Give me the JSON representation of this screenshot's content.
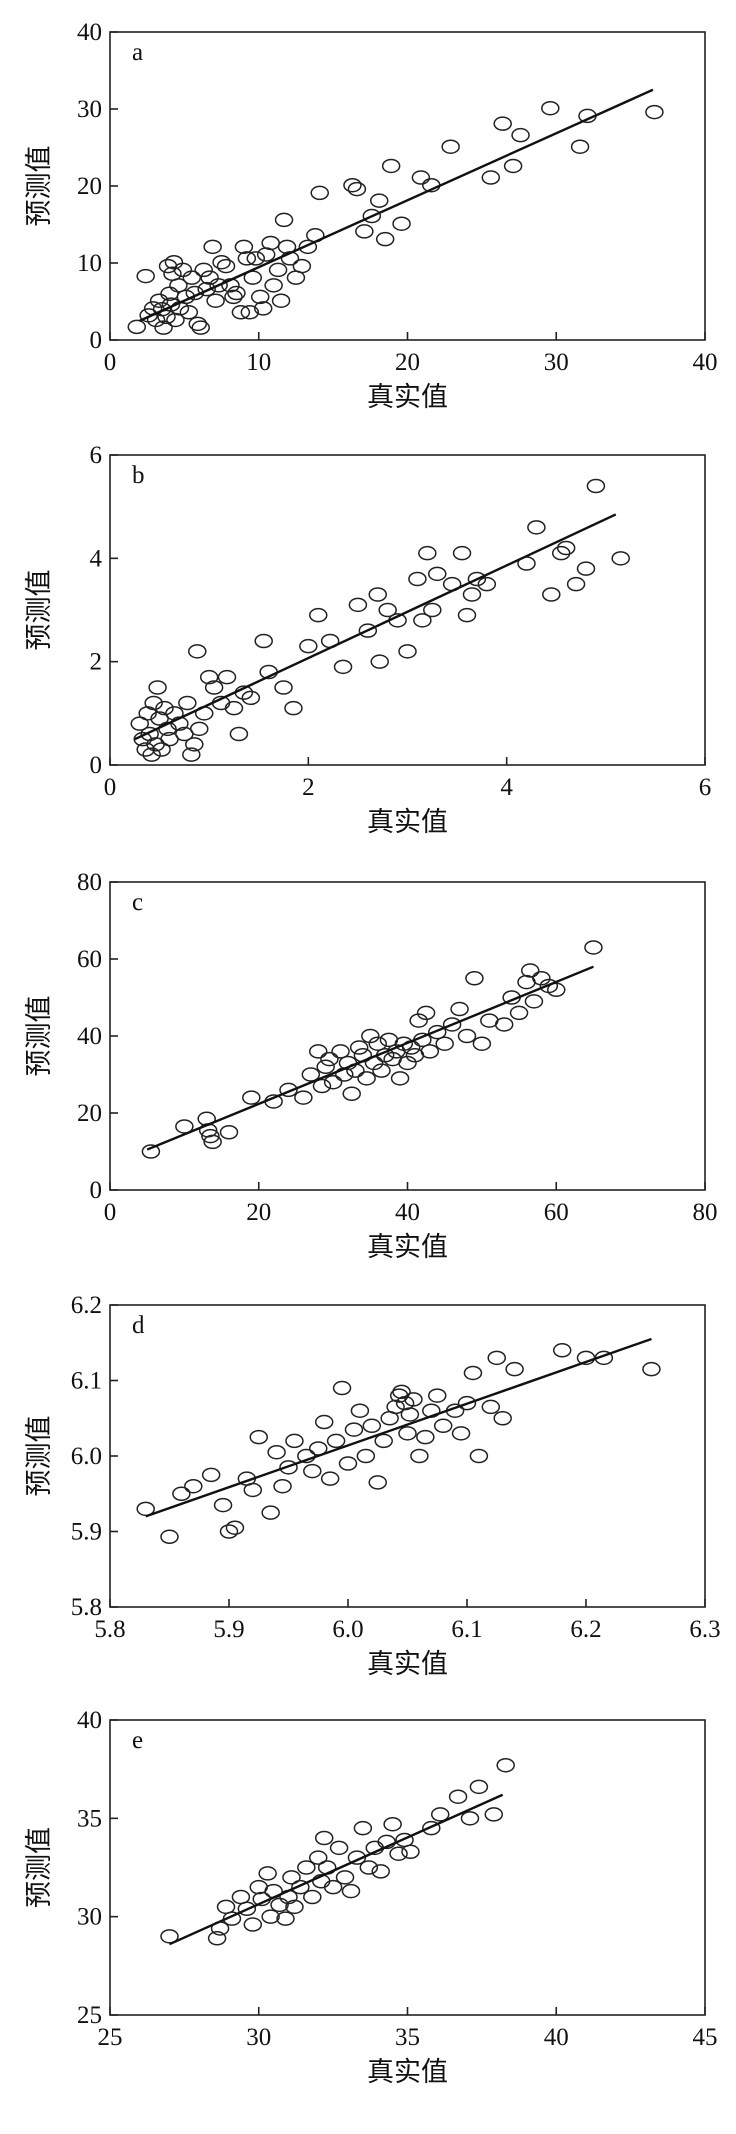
{
  "chart_data": [
    {
      "type": "scatter",
      "panel": "a",
      "xlabel": "真实值",
      "ylabel": "预测值",
      "xlim": [
        0,
        40
      ],
      "ylim": [
        0,
        40
      ],
      "xticks": [
        0,
        10,
        20,
        30,
        40
      ],
      "yticks": [
        0,
        10,
        20,
        30,
        40
      ],
      "tick_labels_x": [
        "0",
        "10",
        "20",
        "30",
        "40"
      ],
      "tick_labels_y": [
        "0",
        "10",
        "20",
        "30",
        "40"
      ],
      "fit_line": [
        [
          2,
          2.5
        ],
        [
          36.5,
          32.5
        ]
      ],
      "points": [
        [
          1.8,
          1.7
        ],
        [
          2.4,
          8.3
        ],
        [
          2.6,
          3.2
        ],
        [
          2.9,
          4.1
        ],
        [
          3.1,
          2.6
        ],
        [
          3.3,
          5.1
        ],
        [
          3.5,
          4.0
        ],
        [
          3.6,
          1.6
        ],
        [
          3.8,
          3.0
        ],
        [
          3.9,
          9.6
        ],
        [
          4.0,
          6.0
        ],
        [
          4.1,
          4.6
        ],
        [
          4.2,
          8.6
        ],
        [
          4.3,
          10.1
        ],
        [
          4.4,
          2.6
        ],
        [
          4.6,
          7.1
        ],
        [
          4.7,
          4.1
        ],
        [
          4.9,
          9.1
        ],
        [
          5.1,
          5.6
        ],
        [
          5.3,
          3.6
        ],
        [
          5.5,
          8.1
        ],
        [
          5.7,
          6.1
        ],
        [
          5.9,
          2.1
        ],
        [
          6.1,
          1.6
        ],
        [
          6.3,
          9.1
        ],
        [
          6.5,
          6.6
        ],
        [
          6.7,
          8.1
        ],
        [
          6.9,
          12.1
        ],
        [
          7.1,
          5.1
        ],
        [
          7.3,
          7.1
        ],
        [
          7.5,
          10.1
        ],
        [
          7.8,
          9.6
        ],
        [
          8.1,
          7.1
        ],
        [
          8.3,
          5.6
        ],
        [
          8.5,
          6.1
        ],
        [
          8.8,
          3.6
        ],
        [
          9.0,
          12.1
        ],
        [
          9.2,
          10.6
        ],
        [
          9.4,
          3.6
        ],
        [
          9.6,
          8.1
        ],
        [
          9.8,
          10.6
        ],
        [
          10.1,
          5.6
        ],
        [
          10.3,
          4.1
        ],
        [
          10.5,
          11.1
        ],
        [
          10.8,
          12.6
        ],
        [
          11.0,
          7.1
        ],
        [
          11.3,
          9.1
        ],
        [
          11.5,
          5.1
        ],
        [
          11.7,
          15.6
        ],
        [
          11.9,
          12.1
        ],
        [
          12.1,
          10.6
        ],
        [
          12.5,
          8.1
        ],
        [
          12.9,
          9.6
        ],
        [
          13.3,
          12.1
        ],
        [
          13.8,
          13.6
        ],
        [
          14.1,
          19.1
        ],
        [
          16.3,
          20.1
        ],
        [
          16.6,
          19.6
        ],
        [
          17.1,
          14.1
        ],
        [
          17.6,
          16.1
        ],
        [
          18.1,
          18.1
        ],
        [
          18.5,
          13.1
        ],
        [
          18.9,
          22.6
        ],
        [
          19.6,
          15.1
        ],
        [
          20.9,
          21.1
        ],
        [
          21.6,
          20.1
        ],
        [
          22.9,
          25.1
        ],
        [
          25.6,
          21.1
        ],
        [
          26.4,
          28.1
        ],
        [
          27.1,
          22.6
        ],
        [
          27.6,
          26.6
        ],
        [
          29.6,
          30.1
        ],
        [
          31.6,
          25.1
        ],
        [
          32.1,
          29.1
        ],
        [
          36.6,
          29.6
        ]
      ]
    },
    {
      "type": "scatter",
      "panel": "b",
      "xlabel": "真实值",
      "ylabel": "预测值",
      "xlim": [
        0,
        6
      ],
      "ylim": [
        0,
        6
      ],
      "xticks": [
        0,
        2,
        4,
        6
      ],
      "yticks": [
        0,
        2,
        4,
        6
      ],
      "tick_labels_x": [
        "0",
        "2",
        "4",
        "6"
      ],
      "tick_labels_y": [
        "0",
        "2",
        "4",
        "6"
      ],
      "fit_line": [
        [
          0.25,
          0.5
        ],
        [
          5.1,
          4.85
        ]
      ],
      "points": [
        [
          0.3,
          0.8
        ],
        [
          0.33,
          0.5
        ],
        [
          0.36,
          0.3
        ],
        [
          0.38,
          1.0
        ],
        [
          0.4,
          0.6
        ],
        [
          0.42,
          0.2
        ],
        [
          0.44,
          1.2
        ],
        [
          0.46,
          0.4
        ],
        [
          0.48,
          1.5
        ],
        [
          0.5,
          0.9
        ],
        [
          0.52,
          0.3
        ],
        [
          0.55,
          1.1
        ],
        [
          0.58,
          0.7
        ],
        [
          0.6,
          0.5
        ],
        [
          0.65,
          1.0
        ],
        [
          0.7,
          0.8
        ],
        [
          0.75,
          0.6
        ],
        [
          0.78,
          1.2
        ],
        [
          0.82,
          0.2
        ],
        [
          0.85,
          0.4
        ],
        [
          0.88,
          2.2
        ],
        [
          0.9,
          0.7
        ],
        [
          0.95,
          1.0
        ],
        [
          1.0,
          1.7
        ],
        [
          1.05,
          1.5
        ],
        [
          1.12,
          1.2
        ],
        [
          1.18,
          1.7
        ],
        [
          1.25,
          1.1
        ],
        [
          1.3,
          0.6
        ],
        [
          1.35,
          1.4
        ],
        [
          1.42,
          1.3
        ],
        [
          1.55,
          2.4
        ],
        [
          1.6,
          1.8
        ],
        [
          1.75,
          1.5
        ],
        [
          1.85,
          1.1
        ],
        [
          2.0,
          2.3
        ],
        [
          2.1,
          2.9
        ],
        [
          2.22,
          2.4
        ],
        [
          2.35,
          1.9
        ],
        [
          2.5,
          3.1
        ],
        [
          2.6,
          2.6
        ],
        [
          2.7,
          3.3
        ],
        [
          2.72,
          2.0
        ],
        [
          2.8,
          3.0
        ],
        [
          2.9,
          2.8
        ],
        [
          3.0,
          2.2
        ],
        [
          3.1,
          3.6
        ],
        [
          3.15,
          2.8
        ],
        [
          3.2,
          4.1
        ],
        [
          3.25,
          3.0
        ],
        [
          3.3,
          3.7
        ],
        [
          3.45,
          3.5
        ],
        [
          3.55,
          4.1
        ],
        [
          3.6,
          2.9
        ],
        [
          3.65,
          3.3
        ],
        [
          3.7,
          3.6
        ],
        [
          3.8,
          3.5
        ],
        [
          4.2,
          3.9
        ],
        [
          4.3,
          4.6
        ],
        [
          4.45,
          3.3
        ],
        [
          4.55,
          4.1
        ],
        [
          4.6,
          4.2
        ],
        [
          4.7,
          3.5
        ],
        [
          4.8,
          3.8
        ],
        [
          4.9,
          5.4
        ],
        [
          5.15,
          4.0
        ]
      ]
    },
    {
      "type": "scatter",
      "panel": "c",
      "xlabel": "真实值",
      "ylabel": "预测值",
      "xlim": [
        0,
        80
      ],
      "ylim": [
        0,
        80
      ],
      "xticks": [
        0,
        20,
        40,
        60,
        80
      ],
      "yticks": [
        0,
        20,
        40,
        60,
        80
      ],
      "tick_labels_x": [
        "0",
        "20",
        "40",
        "60",
        "80"
      ],
      "tick_labels_y": [
        "0",
        "20",
        "40",
        "60",
        "80"
      ],
      "fit_line": [
        [
          5,
          10.5
        ],
        [
          65,
          58
        ]
      ],
      "points": [
        [
          5.5,
          10
        ],
        [
          10,
          16.5
        ],
        [
          13,
          18.5
        ],
        [
          13.2,
          15.5
        ],
        [
          13.5,
          14
        ],
        [
          13.8,
          12.5
        ],
        [
          16,
          15
        ],
        [
          19,
          24
        ],
        [
          22,
          23
        ],
        [
          24,
          26
        ],
        [
          26,
          24
        ],
        [
          27,
          30
        ],
        [
          28,
          36
        ],
        [
          28.5,
          27
        ],
        [
          29,
          32
        ],
        [
          29.5,
          34
        ],
        [
          30,
          28
        ],
        [
          31,
          36
        ],
        [
          31.5,
          30
        ],
        [
          32,
          33
        ],
        [
          32.5,
          25
        ],
        [
          33,
          31
        ],
        [
          33.5,
          37
        ],
        [
          34,
          35
        ],
        [
          34.5,
          29
        ],
        [
          35,
          40
        ],
        [
          35.5,
          33
        ],
        [
          36,
          38
        ],
        [
          36.5,
          31
        ],
        [
          37,
          35
        ],
        [
          37.5,
          39
        ],
        [
          38,
          34
        ],
        [
          38.5,
          36
        ],
        [
          39,
          29
        ],
        [
          39.5,
          38
        ],
        [
          40,
          33
        ],
        [
          40.5,
          37
        ],
        [
          41,
          35
        ],
        [
          41.5,
          44
        ],
        [
          42,
          39
        ],
        [
          42.5,
          46
        ],
        [
          43,
          36
        ],
        [
          44,
          41
        ],
        [
          45,
          38
        ],
        [
          46,
          43
        ],
        [
          47,
          47
        ],
        [
          48,
          40
        ],
        [
          49,
          55
        ],
        [
          50,
          38
        ],
        [
          51,
          44
        ],
        [
          53,
          43
        ],
        [
          54,
          50
        ],
        [
          55,
          46
        ],
        [
          56,
          54
        ],
        [
          56.5,
          57
        ],
        [
          57,
          49
        ],
        [
          58,
          55
        ],
        [
          59,
          53
        ],
        [
          60,
          52
        ],
        [
          65,
          63
        ]
      ]
    },
    {
      "type": "scatter",
      "panel": "d",
      "xlabel": "真实值",
      "ylabel": "预测值",
      "xlim": [
        5.8,
        6.3
      ],
      "ylim": [
        5.8,
        6.2
      ],
      "xticks": [
        5.8,
        5.9,
        6.0,
        6.1,
        6.2,
        6.3
      ],
      "yticks": [
        5.8,
        5.9,
        6.0,
        6.1,
        6.2
      ],
      "tick_labels_x": [
        "5.8",
        "5.9",
        "6.0",
        "6.1",
        "6.2",
        "6.3"
      ],
      "tick_labels_y": [
        "5.8",
        "5.9",
        "6.0",
        "6.1",
        "6.2"
      ],
      "fit_line": [
        [
          5.83,
          5.92
        ],
        [
          6.255,
          6.155
        ]
      ],
      "points": [
        [
          5.83,
          5.93
        ],
        [
          5.85,
          5.893
        ],
        [
          5.86,
          5.95
        ],
        [
          5.87,
          5.96
        ],
        [
          5.885,
          5.975
        ],
        [
          5.895,
          5.935
        ],
        [
          5.9,
          5.9
        ],
        [
          5.905,
          5.905
        ],
        [
          5.915,
          5.97
        ],
        [
          5.92,
          5.955
        ],
        [
          5.925,
          6.025
        ],
        [
          5.935,
          5.925
        ],
        [
          5.94,
          6.005
        ],
        [
          5.945,
          5.96
        ],
        [
          5.95,
          5.985
        ],
        [
          5.955,
          6.02
        ],
        [
          5.965,
          6.0
        ],
        [
          5.97,
          5.98
        ],
        [
          5.975,
          6.01
        ],
        [
          5.98,
          6.045
        ],
        [
          5.985,
          5.97
        ],
        [
          5.99,
          6.02
        ],
        [
          5.995,
          6.09
        ],
        [
          6.0,
          5.99
        ],
        [
          6.005,
          6.035
        ],
        [
          6.01,
          6.06
        ],
        [
          6.015,
          6.0
        ],
        [
          6.02,
          6.04
        ],
        [
          6.025,
          5.965
        ],
        [
          6.03,
          6.02
        ],
        [
          6.035,
          6.05
        ],
        [
          6.04,
          6.065
        ],
        [
          6.043,
          6.08
        ],
        [
          6.045,
          6.085
        ],
        [
          6.048,
          6.07
        ],
        [
          6.05,
          6.03
        ],
        [
          6.052,
          6.055
        ],
        [
          6.055,
          6.075
        ],
        [
          6.06,
          6.0
        ],
        [
          6.065,
          6.025
        ],
        [
          6.07,
          6.06
        ],
        [
          6.075,
          6.08
        ],
        [
          6.08,
          6.04
        ],
        [
          6.09,
          6.06
        ],
        [
          6.095,
          6.03
        ],
        [
          6.1,
          6.07
        ],
        [
          6.105,
          6.11
        ],
        [
          6.11,
          6.0
        ],
        [
          6.12,
          6.065
        ],
        [
          6.125,
          6.13
        ],
        [
          6.13,
          6.05
        ],
        [
          6.14,
          6.115
        ],
        [
          6.18,
          6.14
        ],
        [
          6.2,
          6.13
        ],
        [
          6.215,
          6.13
        ],
        [
          6.255,
          6.115
        ]
      ]
    },
    {
      "type": "scatter",
      "panel": "e",
      "xlabel": "真实值",
      "ylabel": "预测值",
      "xlim": [
        25,
        45
      ],
      "ylim": [
        25,
        40
      ],
      "xticks": [
        25,
        30,
        35,
        40,
        45
      ],
      "yticks": [
        25,
        30,
        35,
        40
      ],
      "tick_labels_x": [
        "25",
        "30",
        "35",
        "40",
        "45"
      ],
      "tick_labels_y": [
        "25",
        "30",
        "35",
        "40"
      ],
      "fit_line": [
        [
          27,
          28.6
        ],
        [
          38.2,
          36.2
        ]
      ],
      "points": [
        [
          27,
          29
        ],
        [
          28.6,
          28.9
        ],
        [
          28.7,
          29.4
        ],
        [
          28.9,
          30.5
        ],
        [
          29.1,
          29.9
        ],
        [
          29.4,
          31
        ],
        [
          29.6,
          30.4
        ],
        [
          29.8,
          29.6
        ],
        [
          30,
          31.5
        ],
        [
          30.1,
          30.9
        ],
        [
          30.3,
          32.2
        ],
        [
          30.4,
          30
        ],
        [
          30.5,
          31.3
        ],
        [
          30.7,
          30.6
        ],
        [
          30.9,
          29.9
        ],
        [
          31,
          31
        ],
        [
          31.1,
          32
        ],
        [
          31.2,
          30.5
        ],
        [
          31.4,
          31.5
        ],
        [
          31.6,
          32.5
        ],
        [
          31.8,
          31
        ],
        [
          32,
          33
        ],
        [
          32.1,
          31.8
        ],
        [
          32.2,
          34
        ],
        [
          32.3,
          32.5
        ],
        [
          32.5,
          31.5
        ],
        [
          32.7,
          33.5
        ],
        [
          32.9,
          32
        ],
        [
          33.1,
          31.3
        ],
        [
          33.3,
          33
        ],
        [
          33.5,
          34.5
        ],
        [
          33.7,
          32.5
        ],
        [
          33.9,
          33.5
        ],
        [
          34.1,
          32.3
        ],
        [
          34.3,
          33.8
        ],
        [
          34.5,
          34.7
        ],
        [
          34.7,
          33.2
        ],
        [
          34.9,
          33.9
        ],
        [
          35.1,
          33.3
        ],
        [
          35.8,
          34.5
        ],
        [
          36.1,
          35.2
        ],
        [
          36.7,
          36.1
        ],
        [
          37.1,
          35
        ],
        [
          37.4,
          36.6
        ],
        [
          37.9,
          35.2
        ],
        [
          38.3,
          37.7
        ]
      ]
    }
  ]
}
